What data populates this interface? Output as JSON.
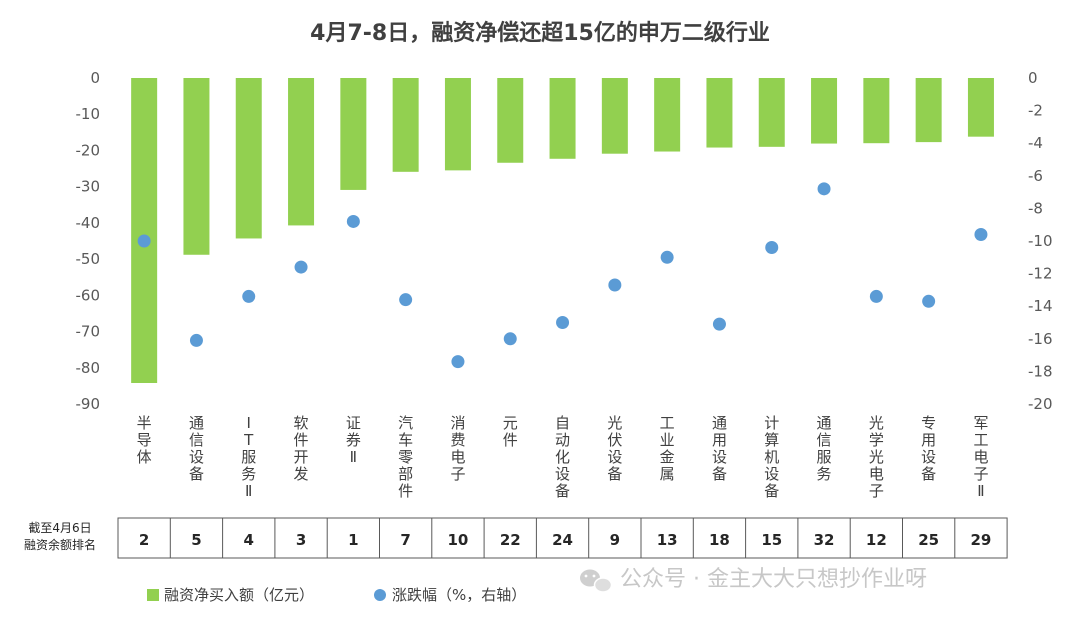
{
  "title": "4月7-8日，融资净偿还超15亿的申万二级行业",
  "chart_data": {
    "type": "bar",
    "title": "4月7-8日，融资净偿还超15亿的申万二级行业",
    "categories": [
      "半导体",
      "通信设备",
      "IT服务Ⅱ",
      "软件开发",
      "证券Ⅱ",
      "汽车零部件",
      "消费电子",
      "元件",
      "自动化设备",
      "光伏设备",
      "工业金属",
      "通用设备",
      "计算机设备",
      "通信服务",
      "光学光电子",
      "专用设备",
      "军工电子Ⅱ"
    ],
    "series": [
      {
        "name": "融资净买入额（亿元）",
        "type": "bar",
        "axis": "left",
        "color": "#92d050",
        "values": [
          -84.2,
          -48.8,
          -44.3,
          -40.7,
          -30.9,
          -25.9,
          -25.5,
          -23.4,
          -22.3,
          -20.9,
          -20.3,
          -19.2,
          -19.0,
          -18.1,
          -18.0,
          -17.7,
          -16.2
        ]
      },
      {
        "name": "涨跌幅（%，右轴）",
        "type": "scatter",
        "axis": "right",
        "color": "#5b9bd5",
        "values": [
          -10.0,
          -16.1,
          -13.4,
          -11.6,
          -8.8,
          -13.6,
          -17.4,
          -16.0,
          -15.0,
          -12.7,
          -11.0,
          -15.1,
          -10.4,
          -6.8,
          -13.4,
          -13.7,
          -9.6
        ]
      }
    ],
    "y_left": {
      "min": -90,
      "max": 0,
      "ticks": [
        0,
        -10,
        -20,
        -30,
        -40,
        -50,
        -60,
        -70,
        -80,
        -90
      ]
    },
    "y_right": {
      "min": -20,
      "max": 0,
      "ticks": [
        0,
        -2,
        -4,
        -6,
        -8,
        -10,
        -12,
        -14,
        -16,
        -18,
        -20
      ]
    },
    "rank_row": {
      "label": [
        "截至4月6日",
        "融资余额排名"
      ],
      "values": [
        2,
        5,
        4,
        3,
        1,
        7,
        10,
        22,
        24,
        9,
        13,
        18,
        15,
        32,
        12,
        25,
        29
      ]
    },
    "legend_position": "bottom-left",
    "grid": false
  },
  "watermark": {
    "text": "公众号 · 金主大大只想抄作业呀",
    "icon": "wechat-icon"
  }
}
